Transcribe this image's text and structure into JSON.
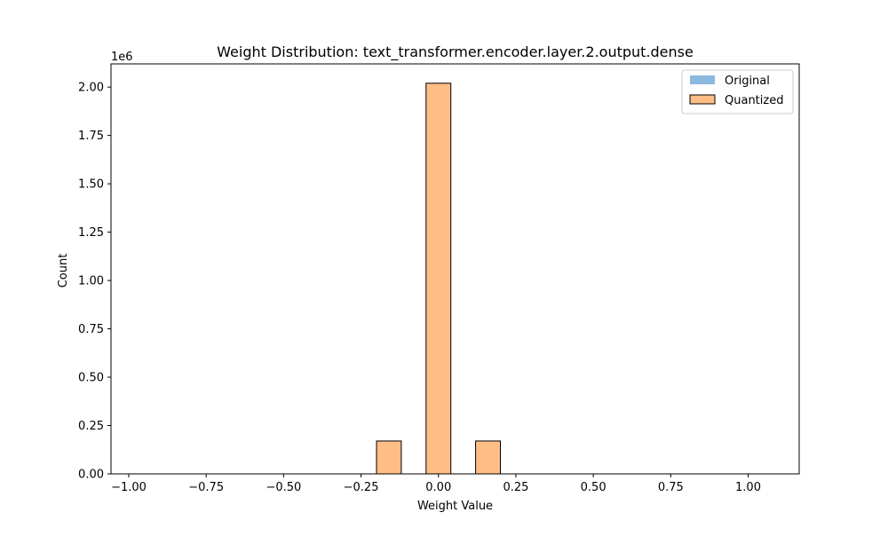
{
  "chart_data": {
    "type": "bar",
    "title": "Weight Distribution: text_transformer.encoder.layer.2.output.dense",
    "xlabel": "Weight Value",
    "ylabel": "Count",
    "y_multiplier_label": "1e6",
    "xlim": [
      -1.0,
      1.0
    ],
    "ylim": [
      0,
      2.12
    ],
    "x_ticks": [
      -1.0,
      -0.75,
      -0.5,
      -0.25,
      0.0,
      0.25,
      0.5,
      0.75,
      1.0
    ],
    "x_tick_labels": [
      "−1.00",
      "−0.75",
      "−0.50",
      "−0.25",
      "0.00",
      "0.25",
      "0.50",
      "0.75",
      "1.00"
    ],
    "y_ticks": [
      0,
      0.25,
      0.5,
      0.75,
      1.0,
      1.25,
      1.5,
      1.75,
      2.0
    ],
    "y_tick_labels": [
      "0.00",
      "0.25",
      "0.50",
      "0.75",
      "1.00",
      "1.25",
      "1.50",
      "1.75",
      "2.00"
    ],
    "legend": {
      "position": "top-right",
      "entries": [
        {
          "label": "Original",
          "color": "#8cb8e0"
        },
        {
          "label": "Quantized",
          "color": "#ffbe86"
        }
      ]
    },
    "series": [
      {
        "name": "Original",
        "color": "#8cb8e0",
        "bins": [
          {
            "x0": -0.04,
            "x1": -0.02,
            "value": 0.008
          },
          {
            "x0": -0.02,
            "x1": 0.0,
            "value": 0.015
          },
          {
            "x0": 0.0,
            "x1": 0.02,
            "value": 0.015
          },
          {
            "x0": 0.02,
            "x1": 0.04,
            "value": 0.008
          }
        ]
      },
      {
        "name": "Quantized",
        "color": "#ffbe86",
        "edge_color": "#000000",
        "bins": [
          {
            "x0": -0.2,
            "x1": -0.12,
            "value": 0.17
          },
          {
            "x0": -0.04,
            "x1": 0.04,
            "value": 2.02
          },
          {
            "x0": 0.12,
            "x1": 0.2,
            "value": 0.17
          }
        ]
      }
    ],
    "grid": false
  }
}
